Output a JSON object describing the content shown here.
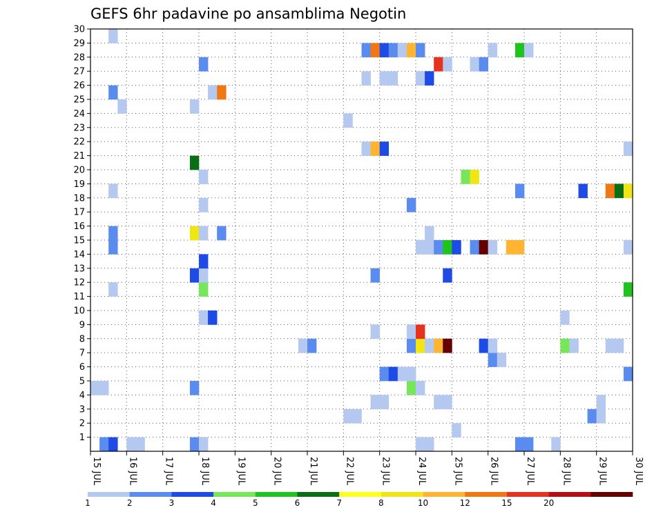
{
  "chart_data": {
    "type": "heatmap",
    "title": "GEFS 6hr padavine po ansamblima Negotin",
    "x_tick_labels": [
      "15 JUL",
      "16 JUL",
      "17 JUL",
      "18 JUL",
      "19 JUL",
      "20 JUL",
      "21 JUL",
      "22 JUL",
      "23 JUL",
      "24 JUL",
      "25 JUL",
      "26 JUL",
      "27 JUL",
      "28 JUL",
      "29 JUL",
      "30 JUL"
    ],
    "y_tick_labels": [
      "1",
      "2",
      "3",
      "4",
      "5",
      "6",
      "7",
      "8",
      "9",
      "10",
      "11",
      "12",
      "13",
      "14",
      "15",
      "16",
      "17",
      "18",
      "19",
      "20",
      "21",
      "22",
      "23",
      "24",
      "25",
      "26",
      "27",
      "28",
      "29",
      "30"
    ],
    "xlim_days": [
      15,
      30
    ],
    "ylim_members": [
      0,
      30
    ],
    "grid": true,
    "colorbar": {
      "labels": [
        "1",
        "2",
        "3",
        "4",
        "5",
        "6",
        "7",
        "8",
        "10",
        "12",
        "15",
        "20"
      ],
      "colors": [
        "#b4c8f0",
        "#5a8cf0",
        "#1e4be6",
        "#78e65a",
        "#1ec31e",
        "#0a6e14",
        "#ffff1e",
        "#f0e614",
        "#ffb432",
        "#f07814",
        "#e6321e",
        "#b40f14",
        "#640000"
      ]
    },
    "cells": [
      {
        "day": 15.25,
        "member": 0,
        "mm": 2
      },
      {
        "day": 15.5,
        "member": 0,
        "mm": 3
      },
      {
        "day": 16.0,
        "member": 0,
        "mm": 1
      },
      {
        "day": 16.25,
        "member": 0,
        "mm": 1
      },
      {
        "day": 17.75,
        "member": 0,
        "mm": 2
      },
      {
        "day": 18.0,
        "member": 0,
        "mm": 1
      },
      {
        "day": 24.0,
        "member": 0,
        "mm": 1
      },
      {
        "day": 24.25,
        "member": 0,
        "mm": 1
      },
      {
        "day": 26.75,
        "member": 0,
        "mm": 2
      },
      {
        "day": 27.0,
        "member": 0,
        "mm": 2
      },
      {
        "day": 27.75,
        "member": 0,
        "mm": 1
      },
      {
        "day": 25.0,
        "member": 1,
        "mm": 1
      },
      {
        "day": 22.0,
        "member": 2,
        "mm": 1
      },
      {
        "day": 22.25,
        "member": 2,
        "mm": 1
      },
      {
        "day": 28.75,
        "member": 2,
        "mm": 2
      },
      {
        "day": 29.0,
        "member": 2,
        "mm": 1
      },
      {
        "day": 22.75,
        "member": 3,
        "mm": 1
      },
      {
        "day": 23.0,
        "member": 3,
        "mm": 1
      },
      {
        "day": 24.5,
        "member": 3,
        "mm": 1
      },
      {
        "day": 24.75,
        "member": 3,
        "mm": 1
      },
      {
        "day": 29.0,
        "member": 3,
        "mm": 1
      },
      {
        "day": 15.0,
        "member": 4,
        "mm": 1
      },
      {
        "day": 15.25,
        "member": 4,
        "mm": 1
      },
      {
        "day": 17.75,
        "member": 4,
        "mm": 2
      },
      {
        "day": 23.75,
        "member": 4,
        "mm": 4
      },
      {
        "day": 24.0,
        "member": 4,
        "mm": 1
      },
      {
        "day": 23.0,
        "member": 5,
        "mm": 2
      },
      {
        "day": 23.25,
        "member": 5,
        "mm": 3
      },
      {
        "day": 23.5,
        "member": 5,
        "mm": 1
      },
      {
        "day": 23.75,
        "member": 5,
        "mm": 1
      },
      {
        "day": 29.75,
        "member": 5,
        "mm": 2
      },
      {
        "day": 26.0,
        "member": 6,
        "mm": 2
      },
      {
        "day": 26.25,
        "member": 6,
        "mm": 1
      },
      {
        "day": 20.75,
        "member": 7,
        "mm": 1
      },
      {
        "day": 21.0,
        "member": 7,
        "mm": 2
      },
      {
        "day": 23.75,
        "member": 7,
        "mm": 2
      },
      {
        "day": 24.0,
        "member": 7,
        "mm": 8
      },
      {
        "day": 24.25,
        "member": 7,
        "mm": 1
      },
      {
        "day": 24.5,
        "member": 7,
        "mm": 10
      },
      {
        "day": 24.75,
        "member": 7,
        "mm": 20
      },
      {
        "day": 25.75,
        "member": 7,
        "mm": 3
      },
      {
        "day": 26.0,
        "member": 7,
        "mm": 1
      },
      {
        "day": 28.0,
        "member": 7,
        "mm": 4
      },
      {
        "day": 28.25,
        "member": 7,
        "mm": 1
      },
      {
        "day": 29.25,
        "member": 7,
        "mm": 1
      },
      {
        "day": 29.5,
        "member": 7,
        "mm": 1
      },
      {
        "day": 22.75,
        "member": 8,
        "mm": 1
      },
      {
        "day": 23.75,
        "member": 8,
        "mm": 1
      },
      {
        "day": 24.0,
        "member": 8,
        "mm": 15
      },
      {
        "day": 18.0,
        "member": 9,
        "mm": 1
      },
      {
        "day": 18.25,
        "member": 9,
        "mm": 3
      },
      {
        "day": 28.0,
        "member": 9,
        "mm": 1
      },
      {
        "day": 15.5,
        "member": 11,
        "mm": 1
      },
      {
        "day": 18.0,
        "member": 11,
        "mm": 4
      },
      {
        "day": 29.75,
        "member": 11,
        "mm": 5
      },
      {
        "day": 17.75,
        "member": 12,
        "mm": 3
      },
      {
        "day": 18.0,
        "member": 12,
        "mm": 1
      },
      {
        "day": 22.75,
        "member": 12,
        "mm": 2
      },
      {
        "day": 24.75,
        "member": 12,
        "mm": 3
      },
      {
        "day": 18.0,
        "member": 13,
        "mm": 3
      },
      {
        "day": 15.5,
        "member": 14,
        "mm": 2
      },
      {
        "day": 24.0,
        "member": 14,
        "mm": 1
      },
      {
        "day": 24.25,
        "member": 14,
        "mm": 1
      },
      {
        "day": 24.5,
        "member": 14,
        "mm": 2
      },
      {
        "day": 24.75,
        "member": 14,
        "mm": 5
      },
      {
        "day": 25.0,
        "member": 14,
        "mm": 3
      },
      {
        "day": 25.5,
        "member": 14,
        "mm": 2
      },
      {
        "day": 25.75,
        "member": 14,
        "mm": 20
      },
      {
        "day": 26.0,
        "member": 14,
        "mm": 1
      },
      {
        "day": 26.5,
        "member": 14,
        "mm": 10
      },
      {
        "day": 26.75,
        "member": 14,
        "mm": 10
      },
      {
        "day": 29.75,
        "member": 14,
        "mm": 1
      },
      {
        "day": 15.5,
        "member": 15,
        "mm": 2
      },
      {
        "day": 17.75,
        "member": 15,
        "mm": 8
      },
      {
        "day": 18.0,
        "member": 15,
        "mm": 1
      },
      {
        "day": 18.5,
        "member": 15,
        "mm": 2
      },
      {
        "day": 24.25,
        "member": 15,
        "mm": 1
      },
      {
        "day": 18.0,
        "member": 17,
        "mm": 1
      },
      {
        "day": 23.75,
        "member": 17,
        "mm": 2
      },
      {
        "day": 15.5,
        "member": 18,
        "mm": 1
      },
      {
        "day": 26.75,
        "member": 18,
        "mm": 2
      },
      {
        "day": 28.5,
        "member": 18,
        "mm": 3
      },
      {
        "day": 29.25,
        "member": 18,
        "mm": 12
      },
      {
        "day": 29.5,
        "member": 18,
        "mm": 6
      },
      {
        "day": 29.75,
        "member": 18,
        "mm": 8
      },
      {
        "day": 18.0,
        "member": 19,
        "mm": 1
      },
      {
        "day": 25.25,
        "member": 19,
        "mm": 4
      },
      {
        "day": 25.5,
        "member": 19,
        "mm": 8
      },
      {
        "day": 17.75,
        "member": 20,
        "mm": 6
      },
      {
        "day": 22.5,
        "member": 21,
        "mm": 1
      },
      {
        "day": 22.75,
        "member": 21,
        "mm": 10
      },
      {
        "day": 23.0,
        "member": 21,
        "mm": 3
      },
      {
        "day": 29.75,
        "member": 21,
        "mm": 1
      },
      {
        "day": 22.0,
        "member": 23,
        "mm": 1
      },
      {
        "day": 15.75,
        "member": 24,
        "mm": 1
      },
      {
        "day": 17.75,
        "member": 24,
        "mm": 1
      },
      {
        "day": 15.5,
        "member": 25,
        "mm": 2
      },
      {
        "day": 18.25,
        "member": 25,
        "mm": 1
      },
      {
        "day": 18.5,
        "member": 25,
        "mm": 12
      },
      {
        "day": 22.5,
        "member": 26,
        "mm": 1
      },
      {
        "day": 23.0,
        "member": 26,
        "mm": 1
      },
      {
        "day": 23.25,
        "member": 26,
        "mm": 1
      },
      {
        "day": 24.0,
        "member": 26,
        "mm": 1
      },
      {
        "day": 24.25,
        "member": 26,
        "mm": 3
      },
      {
        "day": 18.0,
        "member": 27,
        "mm": 2
      },
      {
        "day": 24.5,
        "member": 27,
        "mm": 15
      },
      {
        "day": 24.75,
        "member": 27,
        "mm": 1
      },
      {
        "day": 25.5,
        "member": 27,
        "mm": 1
      },
      {
        "day": 25.75,
        "member": 27,
        "mm": 2
      },
      {
        "day": 22.5,
        "member": 28,
        "mm": 2
      },
      {
        "day": 22.75,
        "member": 28,
        "mm": 12
      },
      {
        "day": 23.0,
        "member": 28,
        "mm": 3
      },
      {
        "day": 23.25,
        "member": 28,
        "mm": 2
      },
      {
        "day": 23.5,
        "member": 28,
        "mm": 1
      },
      {
        "day": 23.75,
        "member": 28,
        "mm": 10
      },
      {
        "day": 24.0,
        "member": 28,
        "mm": 2
      },
      {
        "day": 26.0,
        "member": 28,
        "mm": 1
      },
      {
        "day": 26.75,
        "member": 28,
        "mm": 5
      },
      {
        "day": 27.0,
        "member": 28,
        "mm": 1
      },
      {
        "day": 15.5,
        "member": 29,
        "mm": 1
      }
    ]
  }
}
